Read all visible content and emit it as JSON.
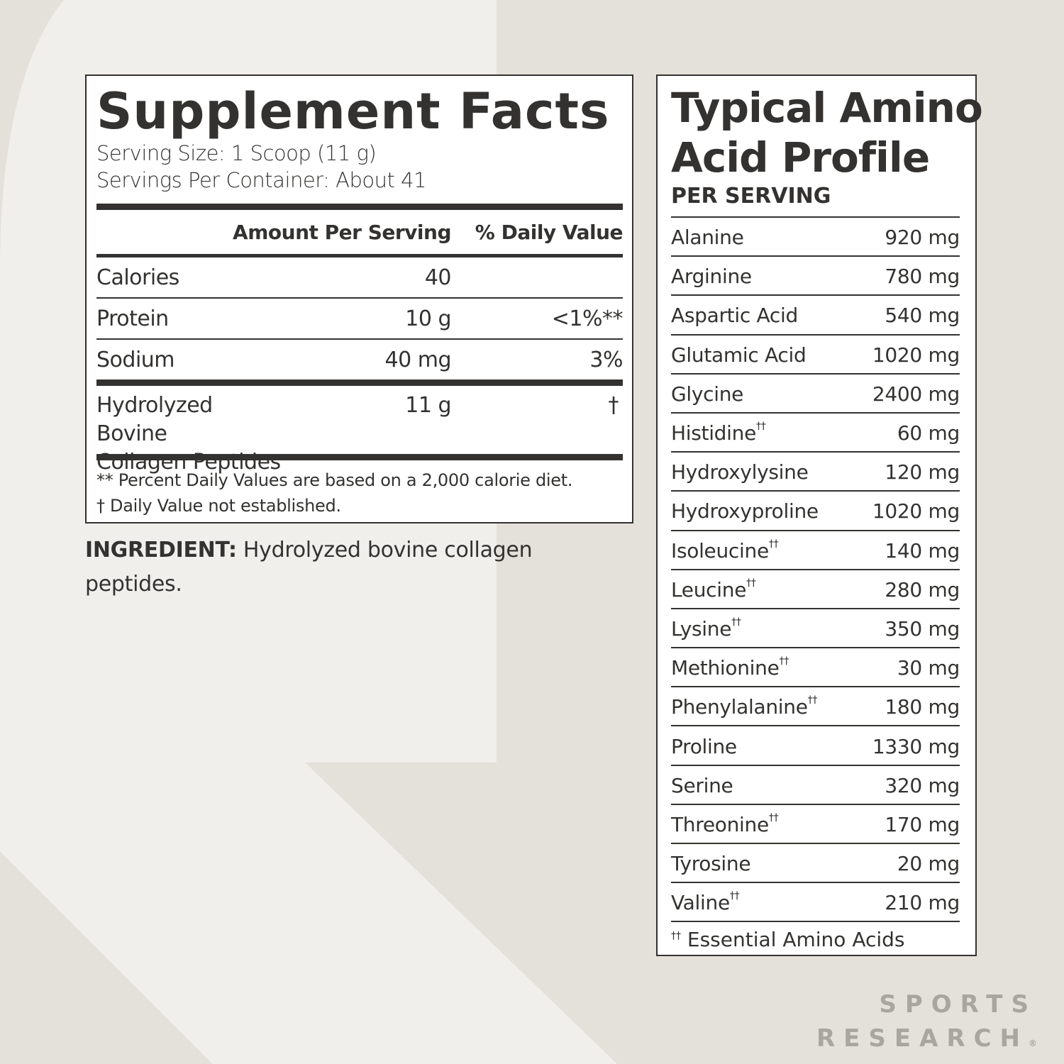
{
  "supplement_facts": {
    "title": "Supplement Facts",
    "serving_size": "Serving Size: 1 Scoop (11 g)",
    "servings_per_container": "Servings Per Container: About 41",
    "headers": {
      "amount": "Amount Per Serving",
      "dv": "% Daily Value"
    },
    "rows": [
      {
        "name": "Calories",
        "amount": "40",
        "dv": ""
      },
      {
        "name": "Protein",
        "amount": "10 g",
        "dv": "<1%**"
      },
      {
        "name": "Sodium",
        "amount": "40 mg",
        "dv": "3%"
      }
    ],
    "ingredient_row": {
      "name_line1": "Hydrolyzed Bovine",
      "name_line2": "Collagen Peptides",
      "amount": "11 g",
      "dv": "†"
    },
    "notes": [
      "** Percent Daily Values are based on a 2,000 calorie diet.",
      "†  Daily Value not established."
    ]
  },
  "ingredient": {
    "label": "INGREDIENT:",
    "text": " Hydrolyzed bovine collagen peptides."
  },
  "amino_profile": {
    "title_line1": "Typical Amino",
    "title_line2": "Acid Profile",
    "subtitle": "PER SERVING",
    "rows": [
      {
        "name": "Alanine",
        "mark": "",
        "value": "920 mg"
      },
      {
        "name": "Arginine",
        "mark": "",
        "value": "780 mg"
      },
      {
        "name": "Aspartic Acid",
        "mark": "",
        "value": "540 mg"
      },
      {
        "name": "Glutamic Acid",
        "mark": "",
        "value": "1020 mg"
      },
      {
        "name": "Glycine",
        "mark": "",
        "value": "2400 mg"
      },
      {
        "name": "Histidine",
        "mark": "††",
        "value": "60 mg"
      },
      {
        "name": "Hydroxylysine",
        "mark": "",
        "value": "120 mg"
      },
      {
        "name": "Hydroxyproline",
        "mark": "",
        "value": "1020 mg"
      },
      {
        "name": "Isoleucine",
        "mark": "††",
        "value": "140 mg"
      },
      {
        "name": "Leucine",
        "mark": "††",
        "value": "280 mg"
      },
      {
        "name": "Lysine",
        "mark": "††",
        "value": "350 mg"
      },
      {
        "name": "Methionine",
        "mark": "††",
        "value": "30 mg"
      },
      {
        "name": "Phenylalanine",
        "mark": "††",
        "value": "180 mg"
      },
      {
        "name": "Proline",
        "mark": "",
        "value": "1330 mg"
      },
      {
        "name": "Serine",
        "mark": "",
        "value": "320 mg"
      },
      {
        "name": "Threonine",
        "mark": "††",
        "value": "170 mg"
      },
      {
        "name": "Tyrosine",
        "mark": "",
        "value": "20 mg"
      },
      {
        "name": "Valine",
        "mark": "††",
        "value": "210 mg"
      }
    ],
    "footnote_mark": "††",
    "footnote": " Essential Amino Acids"
  },
  "logo": {
    "line1": "SPORTS",
    "line2": "RESEARCH",
    "registered": "®"
  },
  "colors": {
    "background": "#e4e1da",
    "watermark": "#f0efeb",
    "ink": "#333230",
    "logo": "#a8a69e"
  }
}
